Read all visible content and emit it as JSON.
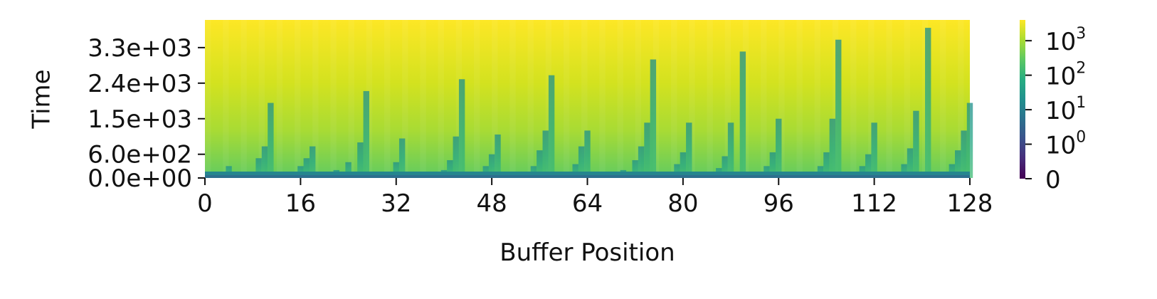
{
  "chart_data": {
    "type": "heatmap",
    "title": "",
    "xlabel": "Buffer Position",
    "ylabel": "Time",
    "x_range": [
      0,
      128
    ],
    "y_range": [
      0,
      4000
    ],
    "x_ticks": [
      {
        "value": 0,
        "label": "0"
      },
      {
        "value": 16,
        "label": "16"
      },
      {
        "value": 32,
        "label": "32"
      },
      {
        "value": 48,
        "label": "48"
      },
      {
        "value": 64,
        "label": "64"
      },
      {
        "value": 80,
        "label": "80"
      },
      {
        "value": 96,
        "label": "96"
      },
      {
        "value": 112,
        "label": "112"
      },
      {
        "value": 128,
        "label": "128"
      }
    ],
    "y_ticks": [
      {
        "value": 0,
        "label": "0.0e+00"
      },
      {
        "value": 600,
        "label": "6.0e+02"
      },
      {
        "value": 1500,
        "label": "1.5e+03"
      },
      {
        "value": 2400,
        "label": "2.4e+03"
      },
      {
        "value": 3300,
        "label": "3.3e+03"
      }
    ],
    "colormap": "viridis",
    "color_scale": "symlog",
    "color_range": [
      0,
      4000
    ],
    "colorbar_ticks": [
      {
        "value": 0,
        "base": "0",
        "exp": ""
      },
      {
        "value": 1,
        "base": "10",
        "exp": "0"
      },
      {
        "value": 10,
        "base": "10",
        "exp": "1"
      },
      {
        "value": 100,
        "base": "10",
        "exp": "2"
      },
      {
        "value": 1000,
        "base": "10",
        "exp": "3"
      }
    ],
    "reset_columns": [
      {
        "x": 4,
        "t": 300
      },
      {
        "x": 6,
        "t": 150
      },
      {
        "x": 9,
        "t": 500
      },
      {
        "x": 10,
        "t": 800
      },
      {
        "x": 11,
        "t": 1900
      },
      {
        "x": 14,
        "t": 150
      },
      {
        "x": 16,
        "t": 300
      },
      {
        "x": 17,
        "t": 500
      },
      {
        "x": 18,
        "t": 800
      },
      {
        "x": 22,
        "t": 200
      },
      {
        "x": 24,
        "t": 400
      },
      {
        "x": 26,
        "t": 900
      },
      {
        "x": 27,
        "t": 2200
      },
      {
        "x": 31,
        "t": 150
      },
      {
        "x": 32,
        "t": 400
      },
      {
        "x": 33,
        "t": 1000
      },
      {
        "x": 40,
        "t": 200
      },
      {
        "x": 41,
        "t": 450
      },
      {
        "x": 42,
        "t": 1050
      },
      {
        "x": 43,
        "t": 2500
      },
      {
        "x": 47,
        "t": 300
      },
      {
        "x": 48,
        "t": 600
      },
      {
        "x": 49,
        "t": 1100
      },
      {
        "x": 55,
        "t": 300
      },
      {
        "x": 56,
        "t": 700
      },
      {
        "x": 57,
        "t": 1200
      },
      {
        "x": 58,
        "t": 2600
      },
      {
        "x": 62,
        "t": 350
      },
      {
        "x": 63,
        "t": 800
      },
      {
        "x": 64,
        "t": 1200
      },
      {
        "x": 70,
        "t": 200
      },
      {
        "x": 72,
        "t": 450
      },
      {
        "x": 73,
        "t": 800
      },
      {
        "x": 74,
        "t": 1400
      },
      {
        "x": 75,
        "t": 3000
      },
      {
        "x": 79,
        "t": 350
      },
      {
        "x": 80,
        "t": 650
      },
      {
        "x": 81,
        "t": 1400
      },
      {
        "x": 86,
        "t": 250
      },
      {
        "x": 87,
        "t": 550
      },
      {
        "x": 88,
        "t": 1400
      },
      {
        "x": 90,
        "t": 3200
      },
      {
        "x": 94,
        "t": 300
      },
      {
        "x": 95,
        "t": 650
      },
      {
        "x": 96,
        "t": 1500
      },
      {
        "x": 103,
        "t": 300
      },
      {
        "x": 104,
        "t": 650
      },
      {
        "x": 105,
        "t": 1500
      },
      {
        "x": 106,
        "t": 3500
      },
      {
        "x": 110,
        "t": 300
      },
      {
        "x": 111,
        "t": 600
      },
      {
        "x": 112,
        "t": 1400
      },
      {
        "x": 117,
        "t": 350
      },
      {
        "x": 118,
        "t": 750
      },
      {
        "x": 119,
        "t": 1700
      },
      {
        "x": 121,
        "t": 3800
      },
      {
        "x": 125,
        "t": 350
      },
      {
        "x": 126,
        "t": 700
      },
      {
        "x": 127,
        "t": 1200
      },
      {
        "x": 128,
        "t": 1900
      }
    ]
  }
}
